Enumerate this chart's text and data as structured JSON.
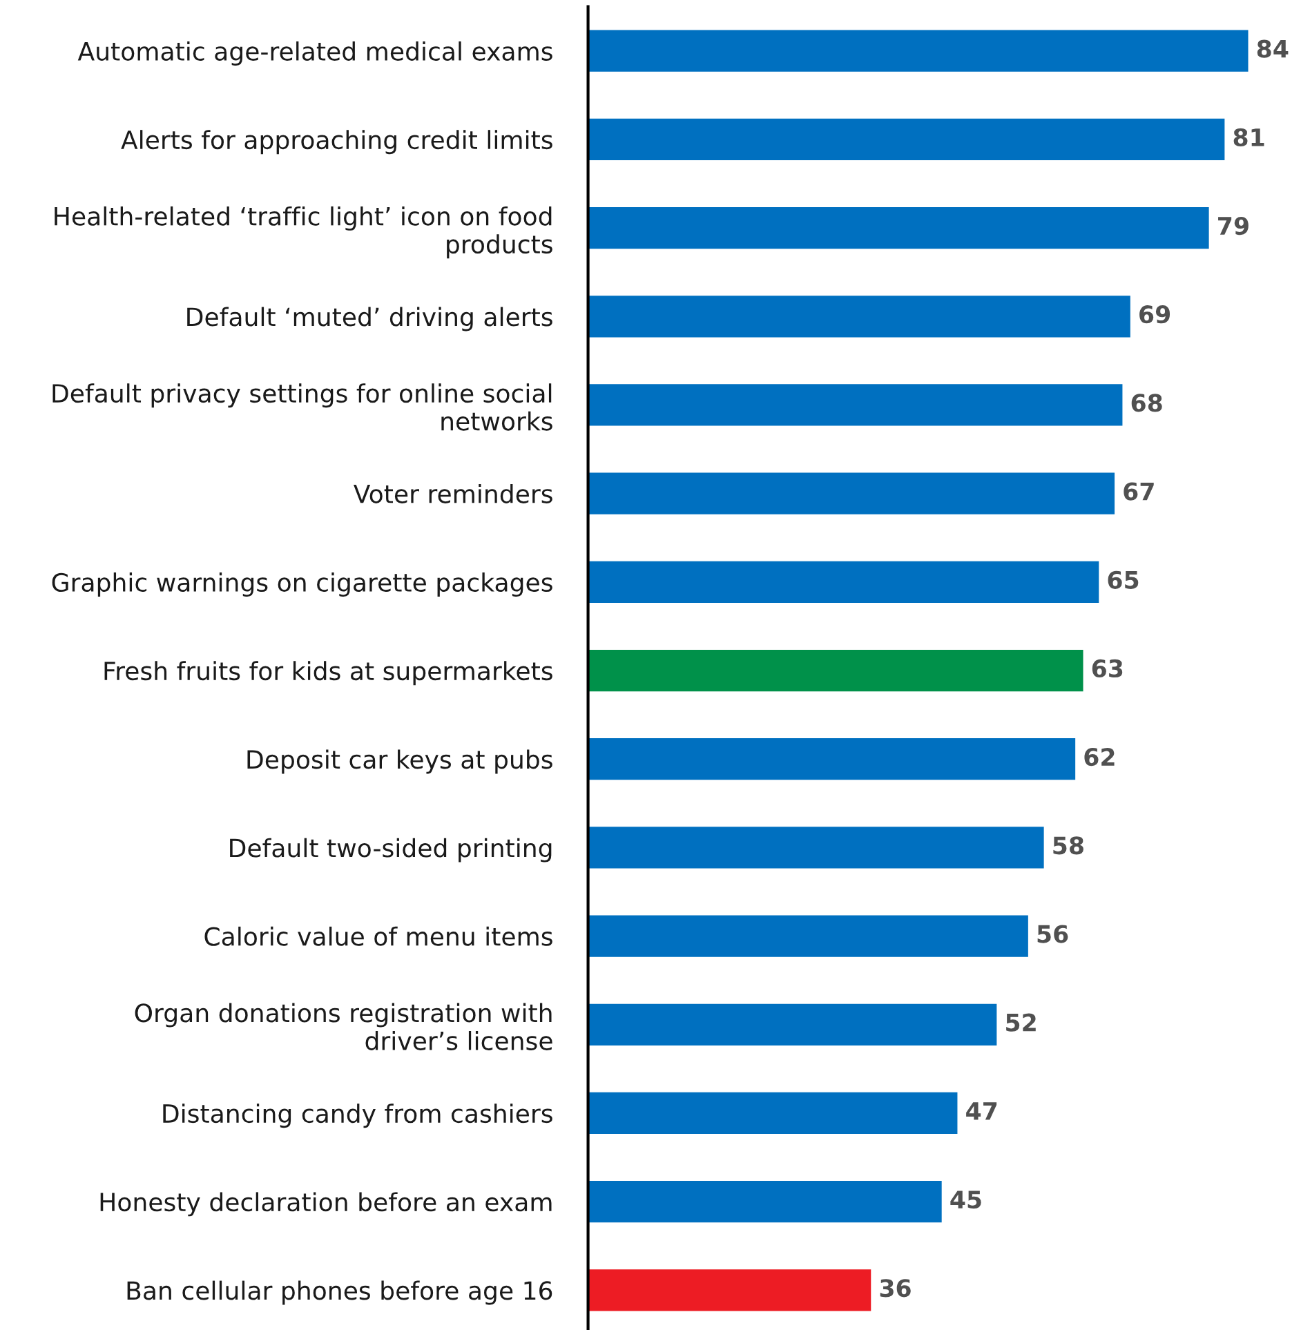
{
  "chart_data": {
    "type": "bar",
    "orientation": "horizontal",
    "categories": [
      "Automatic age-related medical exams",
      "Alerts for approaching credit limits",
      "Health-related ‘traffic light’ icon on food products",
      "Default ‘muted’ driving alerts",
      "Default privacy settings for online social networks",
      "Voter reminders",
      "Graphic warnings on cigarette packages",
      "Fresh fruits for kids at supermarkets",
      "Deposit car keys at pubs",
      "Default two-sided printing",
      "Caloric value of menu items",
      "Organ donations registration with driver’s license",
      "Distancing candy from cashiers",
      "Honesty declaration before an exam",
      "Ban cellular phones before age 16"
    ],
    "values": [
      84,
      81,
      79,
      69,
      68,
      67,
      65,
      63,
      62,
      58,
      56,
      52,
      47,
      45,
      36
    ],
    "colors": [
      "#0070c0",
      "#0070c0",
      "#0070c0",
      "#0070c0",
      "#0070c0",
      "#0070c0",
      "#0070c0",
      "#00914a",
      "#0070c0",
      "#0070c0",
      "#0070c0",
      "#0070c0",
      "#0070c0",
      "#0070c0",
      "#ed1c24"
    ],
    "data_labels": true,
    "tick_labels": "y",
    "grid": false,
    "legend": false
  }
}
